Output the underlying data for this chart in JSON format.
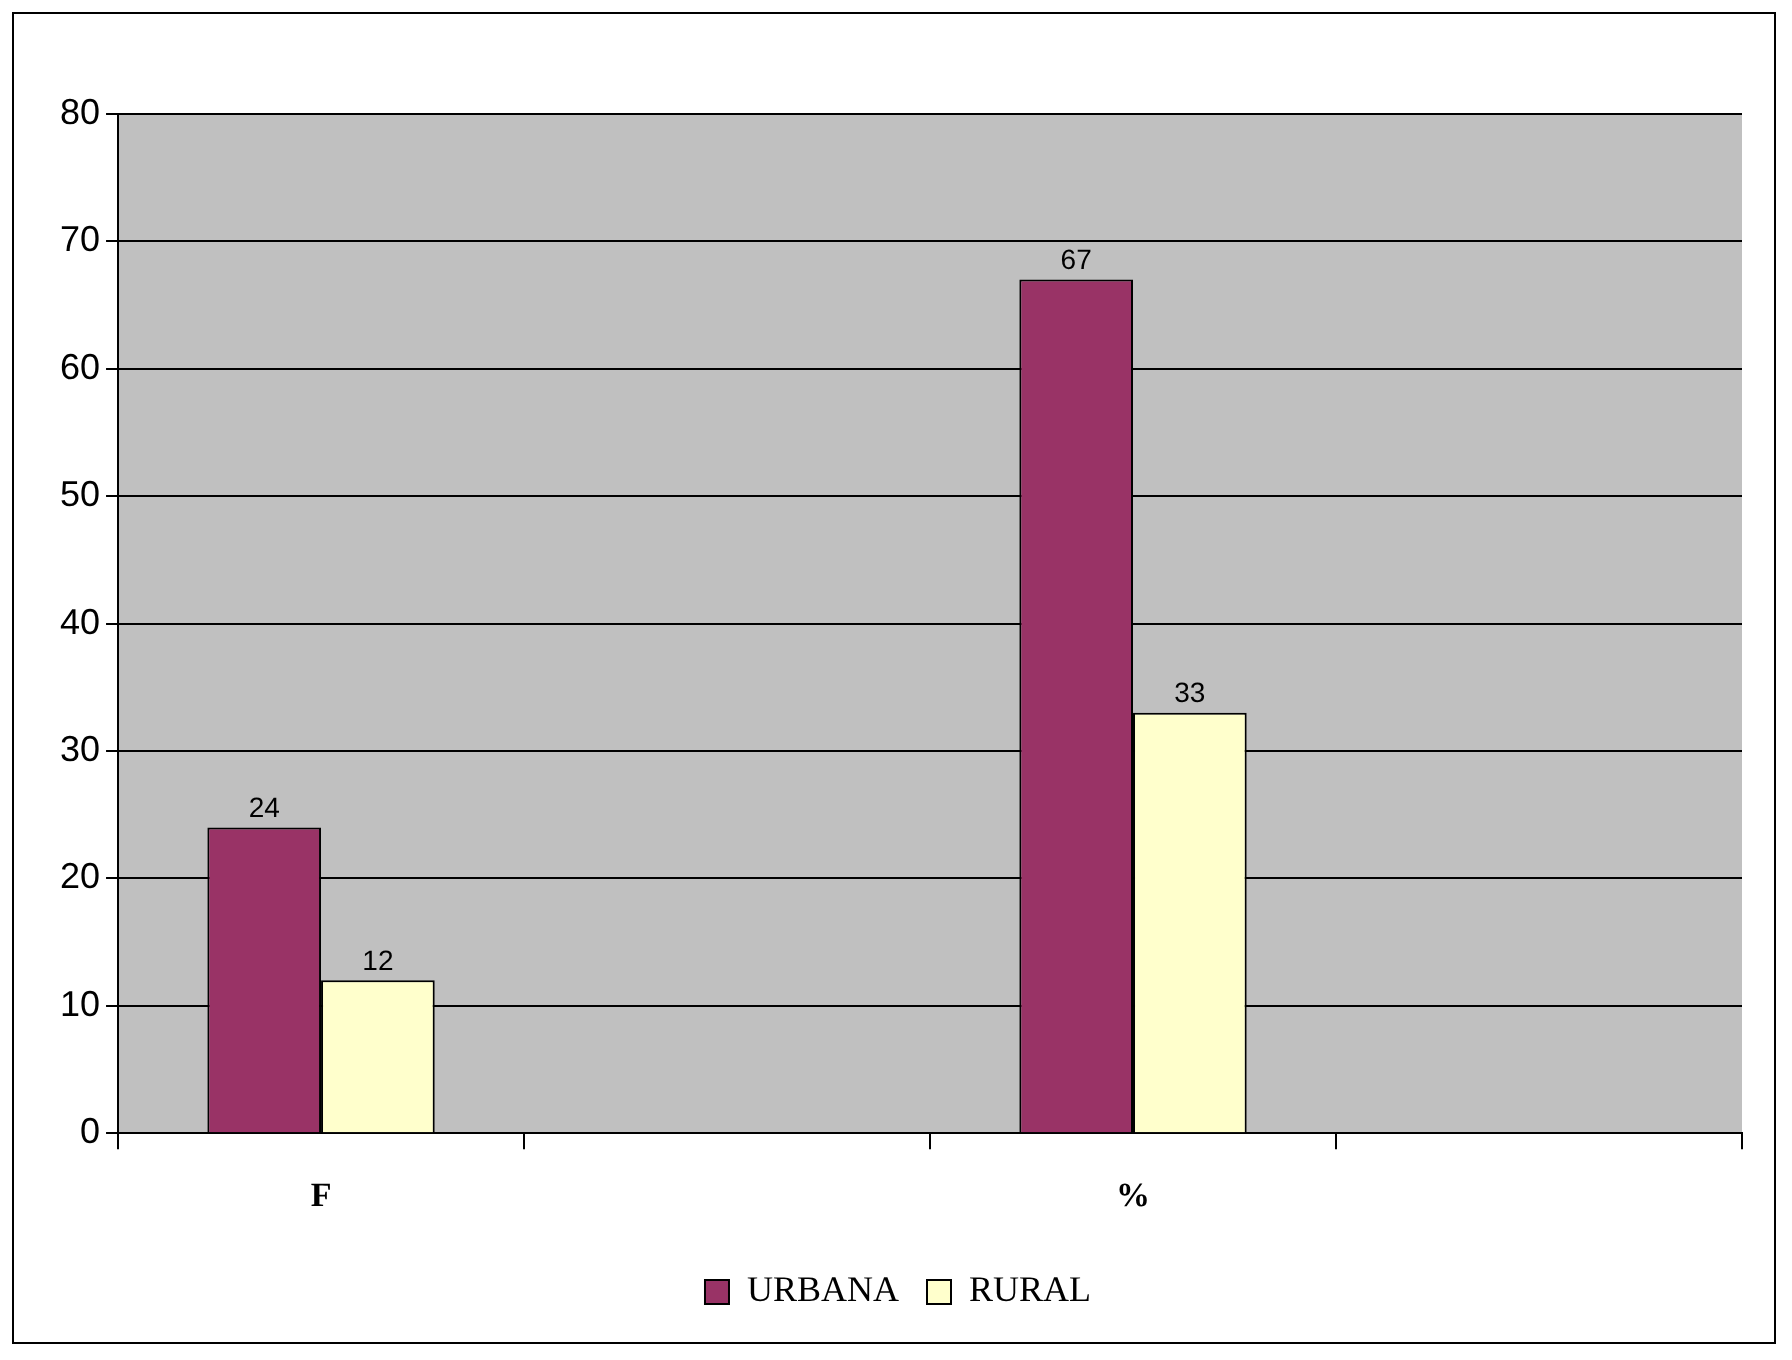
{
  "chart_data": {
    "type": "bar",
    "categories": [
      "F",
      null,
      "%",
      null
    ],
    "series": [
      {
        "name": "URBANA",
        "color": "#993366",
        "values": [
          24,
          null,
          67,
          null
        ]
      },
      {
        "name": "RURAL",
        "color": "#ffffcc",
        "values": [
          12,
          null,
          33,
          null
        ]
      }
    ],
    "ylim": [
      0,
      80
    ],
    "yticks": [
      0,
      10,
      20,
      30,
      40,
      50,
      60,
      70,
      80
    ],
    "grid": "y",
    "legend": "bottom",
    "data_labels": true
  }
}
